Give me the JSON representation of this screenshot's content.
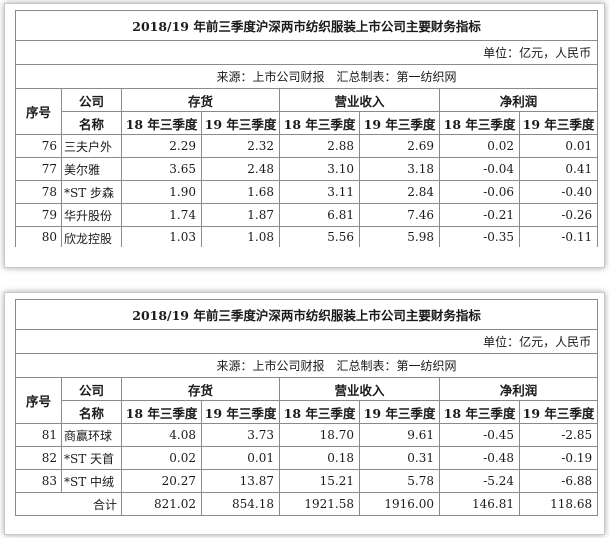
{
  "title": "2018/19 年前三季度沪深两市纺织服装上市公司主要财务指标",
  "unit": "单位：亿元，人民币",
  "source": "来源：上市公司财报　汇总制表：第一纺织网",
  "headers": {
    "index": "序号",
    "company": "公司",
    "name": "名称",
    "inventory": "存货",
    "revenue": "营业收入",
    "net_profit": "净利润",
    "q18": "18 年三季度",
    "q19": "19 年三季度"
  },
  "table1_rows": [
    {
      "idx": "76",
      "name": "三夫户外",
      "inv18": "2.29",
      "inv19": "2.32",
      "rev18": "2.88",
      "rev19": "2.69",
      "np18": "0.02",
      "np19": "0.01"
    },
    {
      "idx": "77",
      "name": "美尔雅",
      "inv18": "3.65",
      "inv19": "2.48",
      "rev18": "3.10",
      "rev19": "3.18",
      "np18": "-0.04",
      "np19": "0.41"
    },
    {
      "idx": "78",
      "name": "*ST 步森",
      "inv18": "1.90",
      "inv19": "1.68",
      "rev18": "3.11",
      "rev19": "2.84",
      "np18": "-0.06",
      "np19": "-0.40"
    },
    {
      "idx": "79",
      "name": "华升股份",
      "inv18": "1.74",
      "inv19": "1.87",
      "rev18": "6.81",
      "rev19": "7.46",
      "np18": "-0.21",
      "np19": "-0.26"
    },
    {
      "idx": "80",
      "name": "欣龙控股",
      "inv18": "1.03",
      "inv19": "1.08",
      "rev18": "5.56",
      "rev19": "5.98",
      "np18": "-0.35",
      "np19": "-0.11"
    }
  ],
  "table2_rows": [
    {
      "idx": "81",
      "name": "商赢环球",
      "inv18": "4.08",
      "inv19": "3.73",
      "rev18": "18.70",
      "rev19": "9.61",
      "np18": "-0.45",
      "np19": "-2.85"
    },
    {
      "idx": "82",
      "name": "*ST 天首",
      "inv18": "0.02",
      "inv19": "0.01",
      "rev18": "0.18",
      "rev19": "0.31",
      "np18": "-0.48",
      "np19": "-0.19"
    },
    {
      "idx": "83",
      "name": "*ST 中绒",
      "inv18": "20.27",
      "inv19": "13.87",
      "rev18": "15.21",
      "rev19": "5.78",
      "np18": "-5.24",
      "np19": "-6.88"
    }
  ],
  "total": {
    "label": "合计",
    "inv18": "821.02",
    "inv19": "854.18",
    "rev18": "1921.58",
    "rev19": "1916.00",
    "np18": "146.81",
    "np19": "118.68"
  }
}
